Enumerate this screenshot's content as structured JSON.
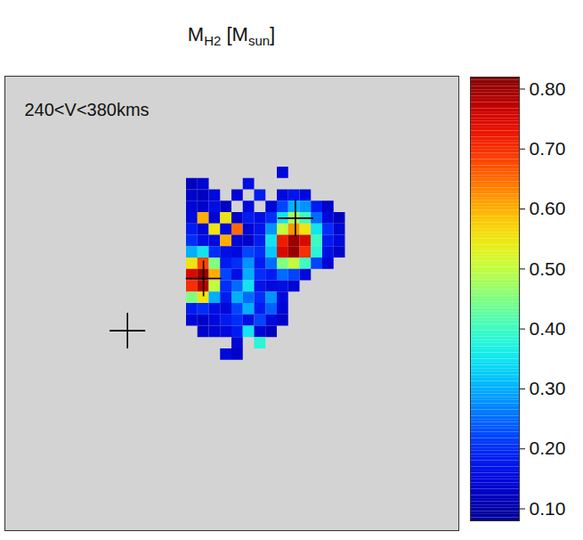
{
  "chart_data": {
    "type": "heatmap",
    "title": [
      {
        "text": "M"
      },
      {
        "text": "H2",
        "sub": true
      },
      {
        "text": " [M"
      },
      {
        "text": "sun",
        "sub": true
      },
      {
        "text": "]"
      }
    ],
    "annotation": "240<V<380kms",
    "tick_labels": false,
    "xlim": [
      0,
      40
    ],
    "ylim": [
      40,
      0
    ],
    "markers": {
      "marker": "cross",
      "x": [
        25.6,
        17.5,
        10.8
      ],
      "y": [
        12.5,
        17.8,
        22.4
      ]
    },
    "cells": [
      {
        "y": 8,
        "x_start": 24,
        "values": [
          0.15
        ]
      },
      {
        "y": 9,
        "x_start": 16,
        "values": [
          0.12,
          0.14,
          null,
          null,
          null,
          0.16
        ]
      },
      {
        "y": 10,
        "x_start": 16,
        "values": [
          0.13,
          0.12,
          0.15,
          null,
          0.14,
          null,
          0.18,
          null,
          0.15,
          0.17,
          0.15
        ]
      },
      {
        "y": 11,
        "x_start": 16,
        "values": [
          0.14,
          0.13,
          0.16,
          0.12,
          null,
          0.15,
          null,
          0.14,
          0.22,
          0.3,
          0.28,
          0.18,
          0.13
        ]
      },
      {
        "y": 12,
        "x_start": 16,
        "values": [
          0.15,
          0.6,
          0.14,
          0.55,
          0.13,
          0.18,
          0.16,
          0.2,
          0.35,
          0.48,
          0.4,
          0.25,
          0.15,
          0.12
        ]
      },
      {
        "y": 13,
        "x_start": 16,
        "values": [
          0.18,
          0.14,
          0.55,
          0.15,
          0.65,
          0.14,
          0.17,
          0.28,
          0.5,
          0.62,
          0.55,
          0.35,
          0.2,
          0.14
        ]
      },
      {
        "y": 14,
        "x_start": 16,
        "values": [
          0.2,
          0.16,
          0.15,
          0.6,
          0.14,
          0.13,
          0.18,
          0.35,
          0.72,
          0.8,
          0.75,
          0.4,
          0.18,
          0.15
        ]
      },
      {
        "y": 15,
        "x_start": 16,
        "values": [
          0.3,
          0.35,
          0.2,
          0.16,
          0.15,
          0.22,
          0.2,
          0.32,
          0.75,
          0.8,
          0.7,
          0.38,
          0.16,
          0.13
        ]
      },
      {
        "y": 16,
        "x_start": 16,
        "values": [
          0.55,
          0.68,
          0.45,
          0.18,
          0.2,
          0.28,
          0.18,
          0.25,
          0.45,
          0.5,
          0.4,
          0.22,
          0.14
        ]
      },
      {
        "y": 17,
        "x_start": 16,
        "values": [
          0.75,
          0.8,
          0.6,
          0.22,
          0.16,
          0.3,
          0.2,
          0.18,
          0.25,
          0.22,
          0.15
        ]
      },
      {
        "y": 18,
        "x_start": 16,
        "values": [
          0.7,
          0.78,
          0.5,
          0.2,
          0.25,
          0.35,
          0.17,
          0.15,
          0.16,
          0.14
        ]
      },
      {
        "y": 19,
        "x_start": 16,
        "values": [
          0.45,
          0.55,
          0.3,
          0.18,
          0.3,
          0.25,
          0.2,
          0.28,
          0.15
        ]
      },
      {
        "y": 20,
        "x_start": 16,
        "values": [
          0.18,
          0.2,
          0.16,
          0.15,
          0.22,
          0.3,
          0.18,
          0.24,
          0.14
        ]
      },
      {
        "y": 21,
        "x_start": 16,
        "values": [
          0.14,
          0.13,
          0.15,
          0.18,
          0.2,
          0.16,
          0.22,
          0.15,
          0.13
        ]
      },
      {
        "y": 22,
        "x_start": 17,
        "values": [
          0.13,
          0.14,
          0.15,
          0.18,
          0.35,
          0.14,
          0.12
        ]
      },
      {
        "y": 23,
        "x_start": 20,
        "values": [
          0.14,
          null,
          0.38
        ]
      },
      {
        "y": 24,
        "x_start": 19,
        "values": [
          0.15,
          0.13
        ]
      }
    ],
    "colorbar": {
      "range": [
        0.08,
        0.82
      ],
      "ticks": [
        {
          "value": 0.1,
          "label": "0.10"
        },
        {
          "value": 0.2,
          "label": "0.20"
        },
        {
          "value": 0.3,
          "label": "0.30"
        },
        {
          "value": 0.4,
          "label": "0.40"
        },
        {
          "value": 0.5,
          "label": "0.50"
        },
        {
          "value": 0.6,
          "label": "0.60"
        },
        {
          "value": 0.7,
          "label": "0.70"
        },
        {
          "value": 0.8,
          "label": "0.80"
        }
      ]
    }
  }
}
